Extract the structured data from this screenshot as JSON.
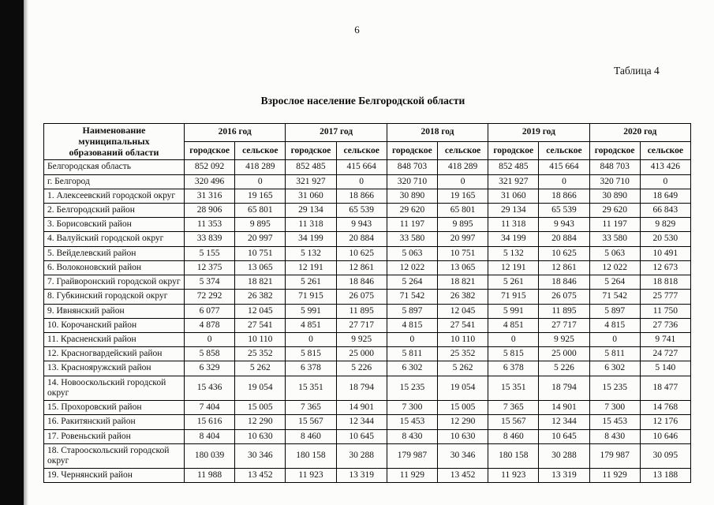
{
  "page": {
    "number": "6",
    "table_caption": "Таблица 4",
    "title": "Взрослое население Белгородской области"
  },
  "table": {
    "name_header": "Наименование муниципальных образований области",
    "years": [
      "2016 год",
      "2017 год",
      "2018 год",
      "2019 год",
      "2020 год"
    ],
    "subcolumns": [
      "городское",
      "сельское"
    ],
    "rows": [
      {
        "name": "Белгородская область",
        "values": [
          "852 092",
          "418 289",
          "852 485",
          "415 664",
          "848 703",
          "418 289",
          "852 485",
          "415 664",
          "848 703",
          "413 426"
        ]
      },
      {
        "name": "г. Белгород",
        "values": [
          "320 496",
          "0",
          "321 927",
          "0",
          "320 710",
          "0",
          "321 927",
          "0",
          "320 710",
          "0"
        ]
      },
      {
        "name": "1. Алексеевский городской округ",
        "values": [
          "31 316",
          "19 165",
          "31 060",
          "18 866",
          "30 890",
          "19 165",
          "31 060",
          "18 866",
          "30 890",
          "18 649"
        ]
      },
      {
        "name": "2. Белгородский район",
        "values": [
          "28 906",
          "65 801",
          "29 134",
          "65 539",
          "29 620",
          "65 801",
          "29 134",
          "65 539",
          "29 620",
          "66 843"
        ]
      },
      {
        "name": "3. Борисовский район",
        "values": [
          "11 353",
          "9 895",
          "11 318",
          "9 943",
          "11 197",
          "9 895",
          "11 318",
          "9 943",
          "11 197",
          "9 829"
        ]
      },
      {
        "name": "4. Валуйский городской округ",
        "values": [
          "33 839",
          "20 997",
          "34 199",
          "20 884",
          "33 580",
          "20 997",
          "34 199",
          "20 884",
          "33 580",
          "20 530"
        ]
      },
      {
        "name": "5. Вейделевский район",
        "values": [
          "5 155",
          "10 751",
          "5 132",
          "10 625",
          "5 063",
          "10 751",
          "5 132",
          "10 625",
          "5 063",
          "10 491"
        ]
      },
      {
        "name": "6. Волоконовский район",
        "values": [
          "12 375",
          "13 065",
          "12 191",
          "12 861",
          "12 022",
          "13 065",
          "12 191",
          "12 861",
          "12 022",
          "12 673"
        ]
      },
      {
        "name": "7. Грайворонский городской округ",
        "values": [
          "5 374",
          "18 821",
          "5 261",
          "18 846",
          "5 264",
          "18 821",
          "5 261",
          "18 846",
          "5 264",
          "18 818"
        ]
      },
      {
        "name": "8. Губкинский городской округ",
        "values": [
          "72 292",
          "26 382",
          "71 915",
          "26 075",
          "71 542",
          "26 382",
          "71 915",
          "26 075",
          "71 542",
          "25 777"
        ]
      },
      {
        "name": "9. Ивнянский район",
        "values": [
          "6 077",
          "12 045",
          "5 991",
          "11 895",
          "5 897",
          "12 045",
          "5 991",
          "11 895",
          "5 897",
          "11 750"
        ]
      },
      {
        "name": "10. Корочанский район",
        "values": [
          "4 878",
          "27 541",
          "4 851",
          "27 717",
          "4 815",
          "27 541",
          "4 851",
          "27 717",
          "4 815",
          "27 736"
        ]
      },
      {
        "name": "11. Красненский район",
        "values": [
          "0",
          "10 110",
          "0",
          "9 925",
          "0",
          "10 110",
          "0",
          "9 925",
          "0",
          "9 741"
        ]
      },
      {
        "name": "12. Красногвардейский район",
        "values": [
          "5 858",
          "25 352",
          "5 815",
          "25 000",
          "5 811",
          "25 352",
          "5 815",
          "25 000",
          "5 811",
          "24 727"
        ]
      },
      {
        "name": "13. Краснояружский район",
        "values": [
          "6 329",
          "5 262",
          "6 378",
          "5 226",
          "6 302",
          "5 262",
          "6 378",
          "5 226",
          "6 302",
          "5 140"
        ]
      },
      {
        "name": "14. Новооскольский городской округ",
        "values": [
          "15 436",
          "19 054",
          "15 351",
          "18 794",
          "15 235",
          "19 054",
          "15 351",
          "18 794",
          "15 235",
          "18 477"
        ]
      },
      {
        "name": "15. Прохоровский район",
        "values": [
          "7 404",
          "15 005",
          "7 365",
          "14 901",
          "7 300",
          "15 005",
          "7 365",
          "14 901",
          "7 300",
          "14 768"
        ]
      },
      {
        "name": "16. Ракитянский район",
        "values": [
          "15 616",
          "12 290",
          "15 567",
          "12 344",
          "15 453",
          "12 290",
          "15 567",
          "12 344",
          "15 453",
          "12 176"
        ]
      },
      {
        "name": "17. Ровеньский район",
        "values": [
          "8 404",
          "10 630",
          "8 460",
          "10 645",
          "8 430",
          "10 630",
          "8 460",
          "10 645",
          "8 430",
          "10 646"
        ]
      },
      {
        "name": "18. Старооскольский городской округ",
        "values": [
          "180 039",
          "30 346",
          "180 158",
          "30 288",
          "179 987",
          "30 346",
          "180 158",
          "30 288",
          "179 987",
          "30 095"
        ]
      },
      {
        "name": "19. Чернянский район",
        "values": [
          "11 988",
          "13 452",
          "11 923",
          "13 319",
          "11 929",
          "13 452",
          "11 923",
          "13 319",
          "11 929",
          "13 188"
        ]
      }
    ]
  }
}
